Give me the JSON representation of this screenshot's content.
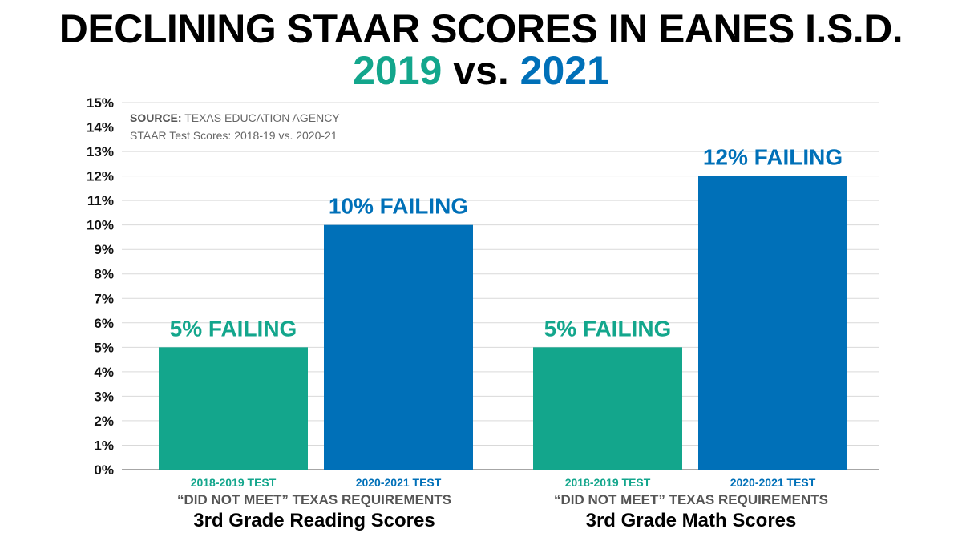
{
  "title": "DECLINING STAAR SCORES IN EANES I.S.D.",
  "subtitle": {
    "year_a": "2019",
    "vs": "vs.",
    "year_b": "2021"
  },
  "source": {
    "label": "SOURCE:",
    "text": "TEXAS EDUCATION AGENCY",
    "detail": "STAAR Test Scores: 2018-19 vs. 2020-21"
  },
  "colors": {
    "year_2019": "#13a68c",
    "year_2021": "#0070b8"
  },
  "chart_data": {
    "type": "bar",
    "ylim": [
      0,
      15
    ],
    "yticks": [
      "0%",
      "1%",
      "2%",
      "3%",
      "4%",
      "5%",
      "6%",
      "7%",
      "8%",
      "9%",
      "10%",
      "11%",
      "12%",
      "13%",
      "14%",
      "15%"
    ],
    "grid": true,
    "groups": [
      {
        "subtitle": "“DID NOT MEET” TEXAS REQUIREMENTS",
        "title": "3rd Grade Reading Scores",
        "bars": [
          {
            "category": "2018-2019 TEST",
            "value": 5,
            "label": "5% FAILING"
          },
          {
            "category": "2020-2021 TEST",
            "value": 10,
            "label": "10% FAILING"
          }
        ]
      },
      {
        "subtitle": "“DID NOT MEET” TEXAS REQUIREMENTS",
        "title": "3rd Grade Math Scores",
        "bars": [
          {
            "category": "2018-2019 TEST",
            "value": 5,
            "label": "5% FAILING"
          },
          {
            "category": "2020-2021 TEST",
            "value": 12,
            "label": "12% FAILING"
          }
        ]
      }
    ]
  }
}
